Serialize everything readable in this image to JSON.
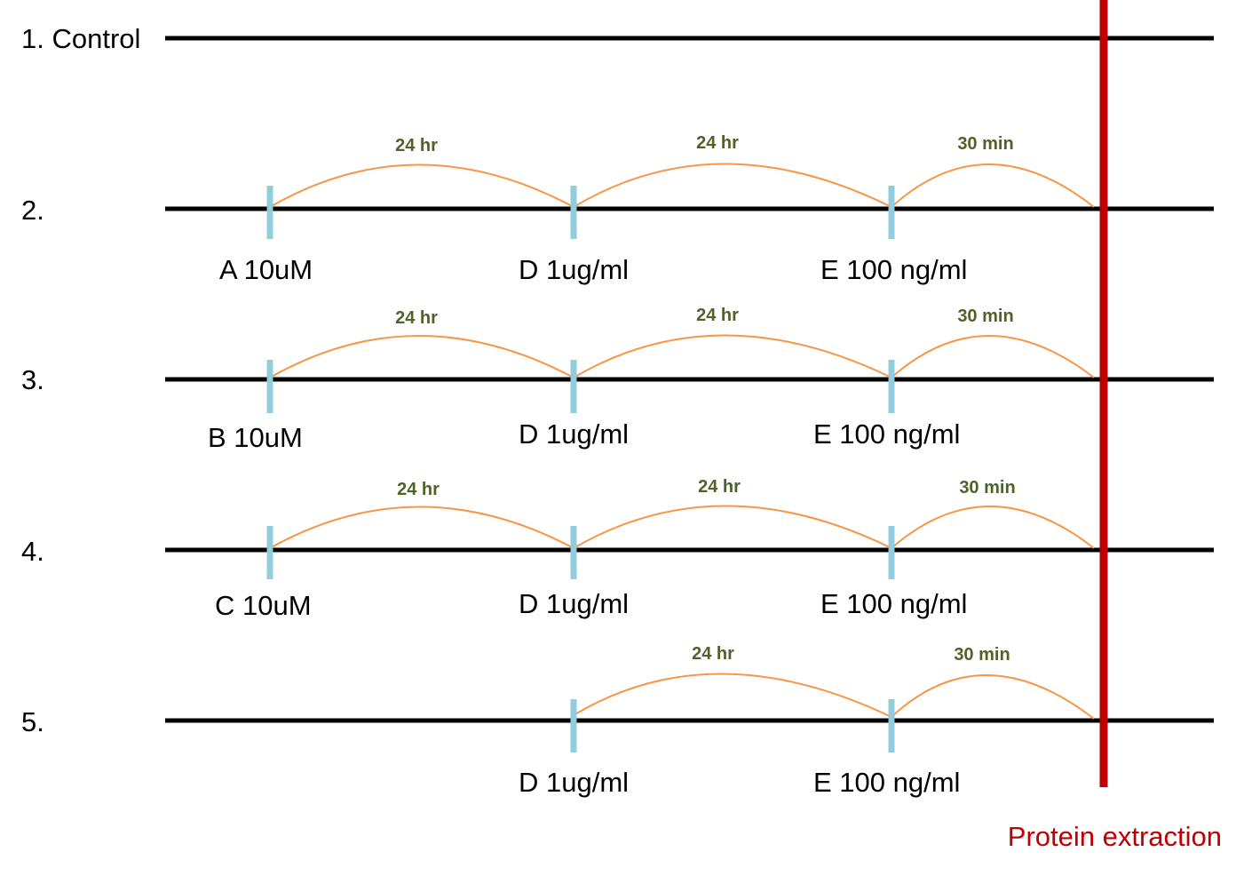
{
  "colors": {
    "timeline": "#000000",
    "marker": "#92cddc",
    "arc": "#f79646",
    "interval_text": "#4f6228",
    "extraction": "#c00000"
  },
  "rows": [
    {
      "label": "1. Control",
      "treatments": [],
      "intervals": []
    },
    {
      "label": "2.",
      "treatments": [
        {
          "label": "A  10uM"
        },
        {
          "label": "D 1ug/ml"
        },
        {
          "label": "E 100 ng/ml"
        }
      ],
      "intervals": [
        {
          "label": "24 hr"
        },
        {
          "label": "24 hr"
        },
        {
          "label": "30 min"
        }
      ]
    },
    {
      "label": "3.",
      "treatments": [
        {
          "label": "B  10uM"
        },
        {
          "label": "D 1ug/ml"
        },
        {
          "label": "E 100 ng/ml"
        }
      ],
      "intervals": [
        {
          "label": "24 hr"
        },
        {
          "label": "24 hr"
        },
        {
          "label": "30 min"
        }
      ]
    },
    {
      "label": "4.",
      "treatments": [
        {
          "label": "C  10uM"
        },
        {
          "label": "D 1ug/ml"
        },
        {
          "label": "E 100 ng/ml"
        }
      ],
      "intervals": [
        {
          "label": "24 hr"
        },
        {
          "label": "24 hr"
        },
        {
          "label": "30 min"
        }
      ]
    },
    {
      "label": "5.",
      "treatments": [
        {
          "label": "D 1ug/ml"
        },
        {
          "label": "E 100 ng/ml"
        }
      ],
      "intervals": [
        {
          "label": "24 hr"
        },
        {
          "label": "30 min"
        }
      ]
    }
  ],
  "extraction": {
    "label": "Protein extraction"
  }
}
